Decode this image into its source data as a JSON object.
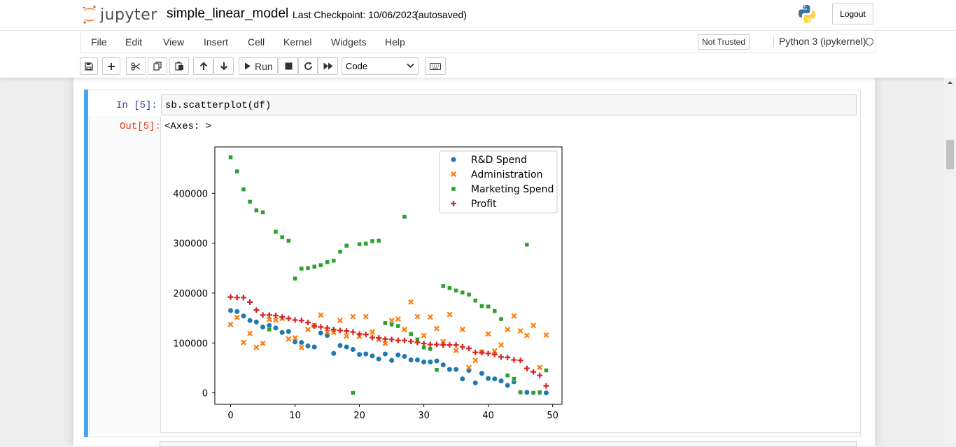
{
  "header": {
    "logo_text": "jupyter",
    "notebook_name": "simple_linear_model",
    "checkpoint": "Last Checkpoint: 10/06/2023",
    "autosave": "(autosaved)",
    "logout_label": "Logout"
  },
  "menubar": {
    "items": [
      "File",
      "Edit",
      "View",
      "Insert",
      "Cell",
      "Kernel",
      "Widgets",
      "Help"
    ],
    "trust_label": "Not Trusted",
    "kernel_name": "Python 3 (ipykernel)"
  },
  "toolbar": {
    "run_label": "Run",
    "cell_type": "Code",
    "icons": [
      "save-icon",
      "plus-icon",
      "cut-icon",
      "copy-icon",
      "paste-icon",
      "arrow-up-icon",
      "arrow-down-icon",
      "run-icon",
      "stop-icon",
      "restart-icon",
      "fast-forward-icon",
      "keyboard-icon"
    ]
  },
  "cell": {
    "in_prompt": "In [5]:",
    "code": "sb.scatterplot(df)",
    "out_prompt": "Out[5]:",
    "out_text": "<Axes: >"
  },
  "chart_data": {
    "type": "scatter",
    "title": "",
    "xlabel": "",
    "ylabel": "",
    "xlim": [
      -2.45,
      51.45
    ],
    "ylim": [
      -23000,
      493000
    ],
    "xticks": [
      "0",
      "10",
      "20",
      "30",
      "40",
      "50"
    ],
    "yticks": [
      "0",
      "100000",
      "200000",
      "300000",
      "400000"
    ],
    "legend_position": "upper right",
    "series": [
      {
        "name": "R&D Spend",
        "color": "#1f77b4",
        "marker": "circle",
        "x": [
          0,
          1,
          2,
          3,
          4,
          5,
          6,
          7,
          8,
          9,
          10,
          11,
          12,
          13,
          14,
          15,
          16,
          17,
          18,
          19,
          20,
          21,
          22,
          23,
          24,
          25,
          26,
          27,
          28,
          29,
          30,
          31,
          32,
          33,
          34,
          35,
          36,
          37,
          38,
          39,
          40,
          41,
          42,
          43,
          44,
          45,
          46,
          47,
          48,
          49
        ],
        "y": [
          165000,
          163000,
          154000,
          145000,
          142000,
          132000,
          135000,
          130000,
          121000,
          123000,
          102000,
          101000,
          94000,
          92000,
          120000,
          115000,
          79000,
          95000,
          92000,
          87000,
          77000,
          78000,
          74000,
          68000,
          78000,
          65000,
          76000,
          73000,
          66000,
          66000,
          62000,
          62000,
          64000,
          56000,
          47000,
          47000,
          28000,
          45000,
          20000,
          39000,
          29000,
          28000,
          24000,
          15000,
          22000,
          1000,
          1000,
          0,
          0,
          0
        ]
      },
      {
        "name": "Administration",
        "color": "#ff7f0e",
        "marker": "x",
        "x": [
          0,
          1,
          2,
          3,
          4,
          5,
          6,
          7,
          8,
          9,
          10,
          11,
          12,
          13,
          14,
          15,
          16,
          17,
          18,
          19,
          20,
          21,
          22,
          23,
          24,
          25,
          26,
          27,
          28,
          29,
          30,
          31,
          32,
          33,
          34,
          35,
          36,
          37,
          38,
          39,
          40,
          41,
          42,
          43,
          44,
          45,
          46,
          47,
          48,
          49
        ],
        "y": [
          137000,
          151000,
          101000,
          119000,
          91000,
          99000,
          147000,
          146000,
          149000,
          108000,
          110000,
          91000,
          127000,
          135000,
          156000,
          122000,
          121000,
          145000,
          114000,
          153000,
          113000,
          153000,
          122000,
          107000,
          99000,
          145000,
          148000,
          127000,
          182000,
          153000,
          115000,
          152000,
          129000,
          103000,
          157000,
          85000,
          127000,
          51000,
          65000,
          82000,
          118000,
          84000,
          96000,
          127000,
          154000,
          124000,
          115000,
          135000,
          51000,
          116000
        ]
      },
      {
        "name": "Marketing Spend",
        "color": "#2ca02c",
        "marker": "square",
        "x": [
          0,
          1,
          2,
          3,
          4,
          5,
          6,
          7,
          8,
          9,
          10,
          11,
          12,
          13,
          14,
          15,
          16,
          17,
          18,
          19,
          20,
          21,
          22,
          23,
          24,
          25,
          26,
          27,
          28,
          29,
          30,
          31,
          32,
          33,
          34,
          35,
          36,
          37,
          38,
          39,
          40,
          41,
          42,
          43,
          44,
          45,
          46,
          47,
          48,
          49
        ],
        "y": [
          472000,
          444000,
          408000,
          383000,
          366000,
          362000,
          127000,
          323000,
          312000,
          305000,
          229000,
          249000,
          250000,
          253000,
          256000,
          262000,
          265000,
          283000,
          295000,
          0,
          298000,
          299000,
          304000,
          305000,
          140000,
          137000,
          134000,
          353000,
          118000,
          107000,
          91000,
          88000,
          46000,
          214000,
          210000,
          205000,
          201000,
          197000,
          185000,
          174000,
          173000,
          164000,
          148000,
          35000,
          28000,
          1000,
          297000,
          0,
          1000,
          45000
        ]
      },
      {
        "name": "Profit",
        "color": "#d62728",
        "marker": "plus",
        "x": [
          0,
          1,
          2,
          3,
          4,
          5,
          6,
          7,
          8,
          9,
          10,
          11,
          12,
          13,
          14,
          15,
          16,
          17,
          18,
          19,
          20,
          21,
          22,
          23,
          24,
          25,
          26,
          27,
          28,
          29,
          30,
          31,
          32,
          33,
          34,
          35,
          36,
          37,
          38,
          39,
          40,
          41,
          42,
          43,
          44,
          45,
          46,
          47,
          48,
          49
        ],
        "y": [
          192000,
          191000,
          191000,
          182000,
          166000,
          156000,
          156000,
          155000,
          152000,
          149000,
          146000,
          145000,
          141000,
          134000,
          132000,
          130000,
          127000,
          125000,
          124000,
          122000,
          118000,
          117000,
          111000,
          110000,
          108000,
          107000,
          105000,
          105000,
          103000,
          101000,
          99000,
          97000,
          97000,
          96000,
          96000,
          96000,
          92000,
          89000,
          81000,
          81000,
          79000,
          77000,
          72000,
          71000,
          66000,
          65000,
          49000,
          42000,
          35000,
          14000
        ]
      }
    ]
  }
}
